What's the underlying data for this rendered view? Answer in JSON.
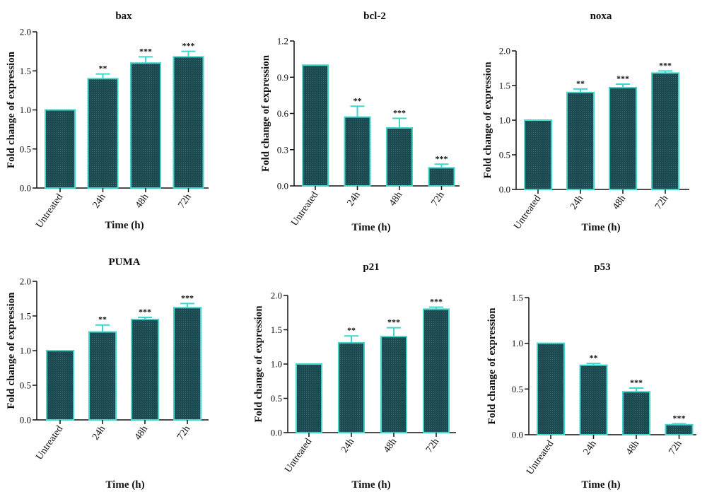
{
  "palette": {
    "bar_fill": "#1d4a50",
    "bar_stroke": "#3fd6cc",
    "error_bar": "#3fd6cc",
    "axis": "#111111"
  },
  "chart_data": [
    {
      "type": "bar",
      "title": "bax",
      "xlabel": "Time (h)",
      "ylabel": "Fold change of expression",
      "categories": [
        "Untreated",
        "24h",
        "48h",
        "72h"
      ],
      "values": [
        1.0,
        1.4,
        1.6,
        1.68
      ],
      "errors": [
        0,
        0.06,
        0.08,
        0.07
      ],
      "significance": [
        "",
        "**",
        "***",
        "***"
      ],
      "ylim": [
        0,
        2.0
      ],
      "yticks": [
        "0.0",
        "0.5",
        "1.0",
        "1.5",
        "2.0"
      ]
    },
    {
      "type": "bar",
      "title": "bcl-2",
      "xlabel": "Time (h)",
      "ylabel": "Fold change of expression",
      "categories": [
        "Untreated",
        "24h",
        "48h",
        "72h"
      ],
      "values": [
        1.0,
        0.57,
        0.48,
        0.15
      ],
      "errors": [
        0,
        0.09,
        0.08,
        0.03
      ],
      "significance": [
        "",
        "**",
        "***",
        "***"
      ],
      "ylim": [
        0,
        1.2
      ],
      "yticks": [
        "0.0",
        "0.3",
        "0.6",
        "0.9",
        "1.2"
      ]
    },
    {
      "type": "bar",
      "title": "noxa",
      "xlabel": "Time (h)",
      "ylabel": "Fold change of expression",
      "categories": [
        "Untreated",
        "24h",
        "48h",
        "72h"
      ],
      "values": [
        1.0,
        1.4,
        1.47,
        1.68
      ],
      "errors": [
        0,
        0.05,
        0.05,
        0.03
      ],
      "significance": [
        "",
        "**",
        "***",
        "***"
      ],
      "ylim": [
        0,
        2.0
      ],
      "yticks": [
        "0.0",
        "0.5",
        "1.0",
        "1.5",
        "2.0"
      ]
    },
    {
      "type": "bar",
      "title": "PUMA",
      "xlabel": "Time (h)",
      "ylabel": "Fold change of expression",
      "categories": [
        "Untreated",
        "24h",
        "48h",
        "72h"
      ],
      "values": [
        1.0,
        1.27,
        1.45,
        1.62
      ],
      "errors": [
        0,
        0.1,
        0.03,
        0.06
      ],
      "significance": [
        "",
        "**",
        "***",
        "***"
      ],
      "ylim": [
        0,
        2.0
      ],
      "yticks": [
        "0.0",
        "0.5",
        "1.0",
        "1.5",
        "2.0"
      ]
    },
    {
      "type": "bar",
      "title": "p21",
      "xlabel": "Time (h)",
      "ylabel": "Fold change of expression",
      "categories": [
        "Untreated",
        "24h",
        "48h",
        "72h"
      ],
      "values": [
        1.0,
        1.31,
        1.4,
        1.8
      ],
      "errors": [
        0,
        0.1,
        0.13,
        0.03
      ],
      "significance": [
        "",
        "**",
        "***",
        "***"
      ],
      "ylim": [
        0,
        2.0
      ],
      "yticks": [
        "0.0",
        "0.5",
        "1.0",
        "1.5",
        "2.0"
      ]
    },
    {
      "type": "bar",
      "title": "p53",
      "xlabel": "Time (h)",
      "ylabel": "Fold change of expression",
      "categories": [
        "Untreated",
        "24h",
        "48h",
        "72h"
      ],
      "values": [
        1.0,
        0.76,
        0.47,
        0.11
      ],
      "errors": [
        0,
        0.02,
        0.04,
        0.01
      ],
      "significance": [
        "",
        "**",
        "***",
        "***"
      ],
      "ylim": [
        0,
        1.5
      ],
      "yticks": [
        "0.0",
        "0.5",
        "1.0",
        "1.5"
      ]
    }
  ]
}
